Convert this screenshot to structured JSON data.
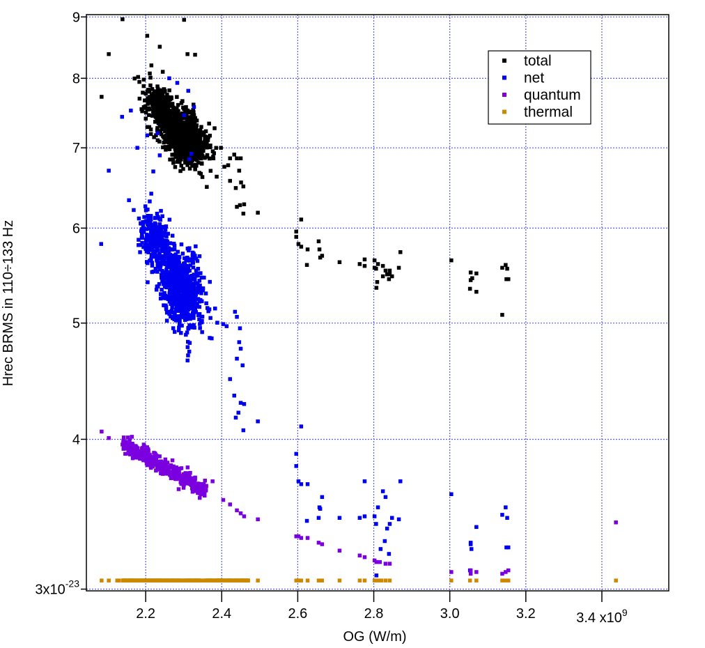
{
  "chart_data": {
    "type": "scatter",
    "title": "",
    "xlabel": "OG (W/m)",
    "ylabel": "Hrec BRMS in 110÷133 Hz",
    "x_scale": "linear",
    "y_scale": "log",
    "xlim": [
      2.044,
      3.576
    ],
    "ylim": [
      2.99,
      9.04
    ],
    "x_ticks": [
      2.2,
      2.4,
      2.6,
      2.8,
      3.0,
      3.2,
      3.4
    ],
    "x_tick_labels": [
      "2.2",
      "2.4",
      "2.6",
      "2.8",
      "3.0",
      "3.2",
      "3.4 x10"
    ],
    "x_multiplier_exponent": "9",
    "y_ticks": [
      3,
      4,
      5,
      6,
      7,
      8,
      9
    ],
    "y_tick_labels": [
      "3x10",
      "4",
      "5",
      "6",
      "7",
      "8",
      "9"
    ],
    "y_multiplier_exponent": "-23",
    "grid": true,
    "legend_position": "top-right",
    "series": [
      {
        "name": "total",
        "color": "#000000",
        "clusters": [
          {
            "kind": "gaussian",
            "cx": 2.3,
            "cy": 7.15,
            "sx": 0.03,
            "sy": 0.2,
            "count": 900
          },
          {
            "kind": "gaussian",
            "cx": 2.235,
            "cy": 7.6,
            "sx": 0.022,
            "sy": 0.18,
            "count": 260
          }
        ],
        "points": [
          [
            2.084,
            7.72
          ],
          [
            2.103,
            8.38
          ],
          [
            2.139,
            8.96
          ],
          [
            2.301,
            8.95
          ],
          [
            2.204,
            8.68
          ],
          [
            2.237,
            8.5
          ],
          [
            2.215,
            8.2
          ],
          [
            2.245,
            8.1
          ],
          [
            2.31,
            8.38
          ],
          [
            2.33,
            8.37
          ],
          [
            2.18,
            8.02
          ],
          [
            2.195,
            7.98
          ],
          [
            2.398,
            7.0
          ],
          [
            2.407,
            6.75
          ],
          [
            2.417,
            6.77
          ],
          [
            2.422,
            6.86
          ],
          [
            2.433,
            6.91
          ],
          [
            2.437,
            6.48
          ],
          [
            2.44,
            6.86
          ],
          [
            2.446,
            6.7
          ],
          [
            2.448,
            6.27
          ],
          [
            2.45,
            6.86
          ],
          [
            2.451,
            6.55
          ],
          [
            2.457,
            6.5
          ],
          [
            2.459,
            6.28
          ],
          [
            2.457,
            6.17
          ],
          [
            2.495,
            6.18
          ],
          [
            2.44,
            6.25
          ],
          [
            2.422,
            6.57
          ],
          [
            2.609,
            6.1
          ],
          [
            2.596,
            5.96
          ],
          [
            2.596,
            5.9
          ],
          [
            2.602,
            5.82
          ],
          [
            2.609,
            5.79
          ],
          [
            2.626,
            5.76
          ],
          [
            2.655,
            5.85
          ],
          [
            2.657,
            5.76
          ],
          [
            2.664,
            5.69
          ],
          [
            2.659,
            5.67
          ],
          [
            2.624,
            5.59
          ],
          [
            2.71,
            5.62
          ],
          [
            2.763,
            5.6
          ],
          [
            2.776,
            5.58
          ],
          [
            2.776,
            5.65
          ],
          [
            2.802,
            5.64
          ],
          [
            2.811,
            5.6
          ],
          [
            2.806,
            5.55
          ],
          [
            2.802,
            5.56
          ],
          [
            2.831,
            5.53
          ],
          [
            2.824,
            5.58
          ],
          [
            2.842,
            5.53
          ],
          [
            2.824,
            5.47
          ],
          [
            2.842,
            5.49
          ],
          [
            2.835,
            5.49
          ],
          [
            2.848,
            5.47
          ],
          [
            2.84,
            5.44
          ],
          [
            2.87,
            5.73
          ],
          [
            2.866,
            5.56
          ],
          [
            2.807,
            5.35
          ],
          [
            2.809,
            5.41
          ],
          [
            3.004,
            5.64
          ],
          [
            3.055,
            5.51
          ],
          [
            3.059,
            5.45
          ],
          [
            3.055,
            5.43
          ],
          [
            3.07,
            5.5
          ],
          [
            3.053,
            5.34
          ],
          [
            3.07,
            5.31
          ],
          [
            3.138,
            5.56
          ],
          [
            3.147,
            5.59
          ],
          [
            3.151,
            5.55
          ],
          [
            3.149,
            5.44
          ],
          [
            3.154,
            5.44
          ],
          [
            3.138,
            5.08
          ]
        ]
      },
      {
        "name": "net",
        "color": "#0000f0",
        "clusters": [
          {
            "kind": "gaussian",
            "cx": 2.295,
            "cy": 5.35,
            "sx": 0.027,
            "sy": 0.22,
            "count": 750
          },
          {
            "kind": "gaussian",
            "cx": 2.225,
            "cy": 5.85,
            "sx": 0.022,
            "sy": 0.2,
            "count": 260
          }
        ],
        "points": [
          [
            2.083,
            5.82
          ],
          [
            2.103,
            6.7
          ],
          [
            2.156,
            6.33
          ],
          [
            2.262,
            8.0
          ],
          [
            2.283,
            7.93
          ],
          [
            2.312,
            7.81
          ],
          [
            2.327,
            7.57
          ],
          [
            2.301,
            7.45
          ],
          [
            2.161,
            7.52
          ],
          [
            2.138,
            7.43
          ],
          [
            2.204,
            7.17
          ],
          [
            2.231,
            7.2
          ],
          [
            2.178,
            7.0
          ],
          [
            2.237,
            6.9
          ],
          [
            2.22,
            6.69
          ],
          [
            2.32,
            6.92
          ],
          [
            2.315,
            6.85
          ],
          [
            2.404,
            4.99
          ],
          [
            2.413,
            4.97
          ],
          [
            2.422,
            4.49
          ],
          [
            2.435,
            5.11
          ],
          [
            2.44,
            5.06
          ],
          [
            2.448,
            4.95
          ],
          [
            2.446,
            4.82
          ],
          [
            2.45,
            4.76
          ],
          [
            2.455,
            4.61
          ],
          [
            2.44,
            4.67
          ],
          [
            2.433,
            4.35
          ],
          [
            2.45,
            4.29
          ],
          [
            2.459,
            4.28
          ],
          [
            2.437,
            4.17
          ],
          [
            2.444,
            4.21
          ],
          [
            2.457,
            4.07
          ],
          [
            2.495,
            4.14
          ],
          [
            2.609,
            4.1
          ],
          [
            2.596,
            3.89
          ],
          [
            2.596,
            3.8
          ],
          [
            2.602,
            3.69
          ],
          [
            2.609,
            3.67
          ],
          [
            2.626,
            3.67
          ],
          [
            2.657,
            3.51
          ],
          [
            2.655,
            3.44
          ],
          [
            2.664,
            3.58
          ],
          [
            2.659,
            3.5
          ],
          [
            2.624,
            3.42
          ],
          [
            2.71,
            3.44
          ],
          [
            2.763,
            3.44
          ],
          [
            2.776,
            3.45
          ],
          [
            2.776,
            3.69
          ],
          [
            2.802,
            3.45
          ],
          [
            2.806,
            3.4
          ],
          [
            2.811,
            3.51
          ],
          [
            2.824,
            3.62
          ],
          [
            2.831,
            3.58
          ],
          [
            2.835,
            3.37
          ],
          [
            2.842,
            3.4
          ],
          [
            2.848,
            3.44
          ],
          [
            2.829,
            3.29
          ],
          [
            2.818,
            3.24
          ],
          [
            2.84,
            3.21
          ],
          [
            2.87,
            3.69
          ],
          [
            2.866,
            3.43
          ],
          [
            2.807,
            3.08
          ],
          [
            3.004,
            3.6
          ],
          [
            3.055,
            3.28
          ],
          [
            3.055,
            3.27
          ],
          [
            3.057,
            3.24
          ],
          [
            3.07,
            3.38
          ],
          [
            3.053,
            3.11
          ],
          [
            3.138,
            3.46
          ],
          [
            3.147,
            3.51
          ],
          [
            3.151,
            3.44
          ],
          [
            3.149,
            3.25
          ],
          [
            3.154,
            3.25
          ]
        ]
      },
      {
        "name": "quantum",
        "color": "#7a00e0",
        "clusters": [
          {
            "kind": "trend",
            "x_range": [
              2.14,
              2.36
            ],
            "y_start": 3.96,
            "y_end": 3.63,
            "jitter": 0.008,
            "count": 420
          }
        ],
        "points": [
          [
            2.084,
            4.06
          ],
          [
            2.103,
            4.01
          ],
          [
            2.139,
            3.96
          ],
          [
            2.376,
            3.69
          ],
          [
            2.404,
            3.56
          ],
          [
            2.422,
            3.53
          ],
          [
            2.44,
            3.49
          ],
          [
            2.45,
            3.47
          ],
          [
            2.459,
            3.45
          ],
          [
            2.495,
            3.43
          ],
          [
            2.596,
            3.32
          ],
          [
            2.602,
            3.32
          ],
          [
            2.609,
            3.31
          ],
          [
            2.626,
            3.31
          ],
          [
            2.655,
            3.28
          ],
          [
            2.664,
            3.27
          ],
          [
            2.71,
            3.23
          ],
          [
            2.763,
            3.2
          ],
          [
            2.776,
            3.19
          ],
          [
            2.802,
            3.17
          ],
          [
            2.807,
            3.16
          ],
          [
            2.816,
            3.16
          ],
          [
            2.831,
            3.15
          ],
          [
            2.842,
            3.15
          ],
          [
            3.004,
            3.1
          ],
          [
            3.055,
            3.09
          ],
          [
            3.055,
            3.11
          ],
          [
            3.07,
            3.1
          ],
          [
            3.138,
            3.09
          ],
          [
            3.147,
            3.1
          ],
          [
            3.154,
            3.11
          ],
          [
            3.437,
            3.41
          ]
        ]
      },
      {
        "name": "thermal",
        "color": "#cc8800",
        "clusters": [
          {
            "kind": "uniform-x",
            "x_range": [
              2.14,
              2.47
            ],
            "y": 3.05,
            "count": 320
          }
        ],
        "points": [
          [
            2.084,
            3.05
          ],
          [
            2.103,
            3.05
          ],
          [
            2.125,
            3.05
          ],
          [
            2.13,
            3.05
          ],
          [
            2.495,
            3.05
          ],
          [
            2.596,
            3.05
          ],
          [
            2.602,
            3.05
          ],
          [
            2.609,
            3.05
          ],
          [
            2.626,
            3.05
          ],
          [
            2.655,
            3.05
          ],
          [
            2.664,
            3.05
          ],
          [
            2.71,
            3.05
          ],
          [
            2.763,
            3.05
          ],
          [
            2.776,
            3.05
          ],
          [
            2.802,
            3.05
          ],
          [
            2.811,
            3.05
          ],
          [
            2.82,
            3.05
          ],
          [
            2.831,
            3.05
          ],
          [
            2.842,
            3.05
          ],
          [
            3.004,
            3.05
          ],
          [
            3.053,
            3.05
          ],
          [
            3.07,
            3.05
          ],
          [
            3.138,
            3.05
          ],
          [
            3.145,
            3.05
          ],
          [
            3.154,
            3.05
          ],
          [
            3.437,
            3.05
          ]
        ]
      }
    ]
  }
}
